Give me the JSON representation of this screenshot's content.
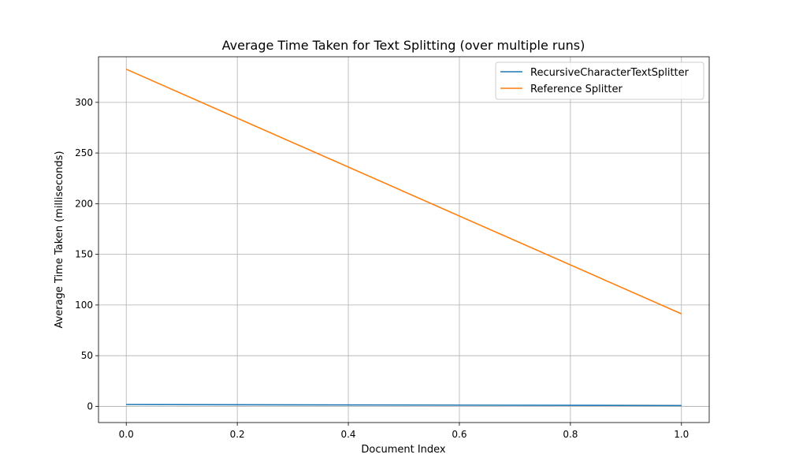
{
  "chart_data": {
    "type": "line",
    "title": "Average Time Taken for Text Splitting (over multiple runs)",
    "xlabel": "Document Index",
    "ylabel": "Average Time Taken (milliseconds)",
    "xlim": [
      -0.05,
      1.05
    ],
    "ylim": [
      -16,
      345
    ],
    "xticks": [
      0.0,
      0.2,
      0.4,
      0.6,
      0.8,
      1.0
    ],
    "xtick_labels": [
      "0.0",
      "0.2",
      "0.4",
      "0.6",
      "0.8",
      "1.0"
    ],
    "yticks": [
      0,
      50,
      100,
      150,
      200,
      250,
      300
    ],
    "ytick_labels": [
      "0",
      "50",
      "100",
      "150",
      "200",
      "250",
      "300"
    ],
    "grid": true,
    "legend_position": "top-right",
    "x": [
      0.0,
      1.0
    ],
    "series": [
      {
        "name": "RecursiveCharacterTextSplitter",
        "values": [
          1.8,
          0.8
        ],
        "color": "#1f77b4"
      },
      {
        "name": "Reference Splitter",
        "values": [
          332.7,
          91.3
        ],
        "color": "#ff7f0e"
      }
    ]
  }
}
